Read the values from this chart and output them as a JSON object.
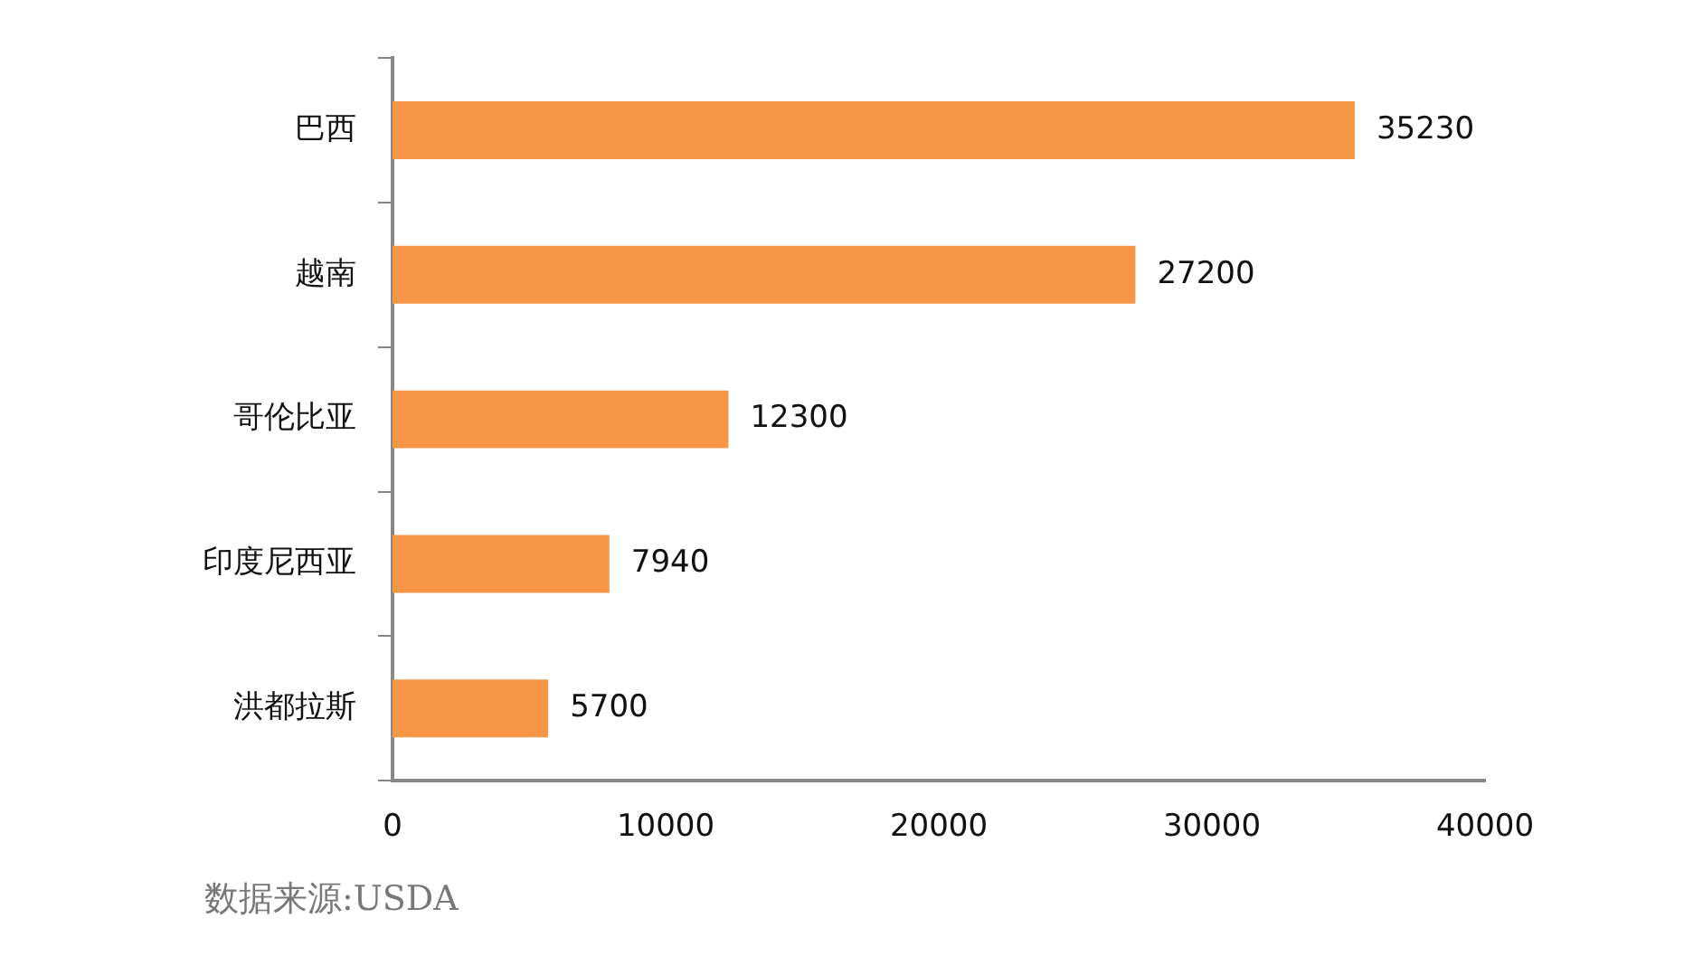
{
  "chart_data": {
    "type": "bar",
    "orientation": "horizontal",
    "categories": [
      "巴西",
      "越南",
      "哥伦比亚",
      "印度尼西亚",
      "洪都拉斯"
    ],
    "values": [
      35230,
      27200,
      12300,
      7940,
      5700
    ],
    "color": "#f79646",
    "xlim": [
      0,
      40000
    ],
    "xticks": [
      0,
      10000,
      20000,
      30000,
      40000
    ],
    "data_labels": true,
    "grid": false,
    "legend": false,
    "annotations": [
      "数据来源:USDA"
    ]
  }
}
